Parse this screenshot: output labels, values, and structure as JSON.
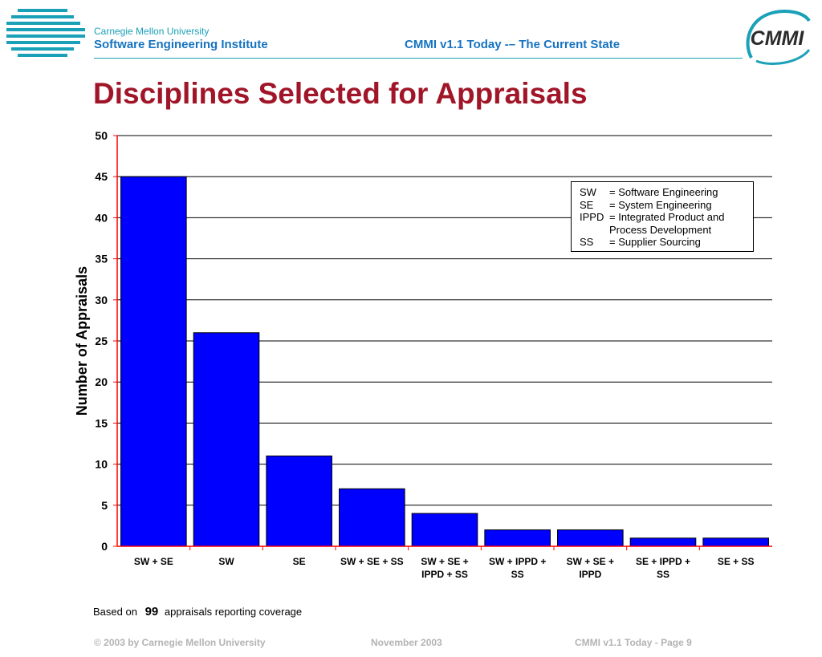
{
  "header": {
    "org_line1": "Carnegie Mellon University",
    "org_line2": "Software Engineering Institute",
    "title": "CMMI v1.1 Today -– The Current State",
    "logo_text": "CMMI"
  },
  "title": "Disciplines Selected for Appraisals",
  "legend": [
    {
      "abbr": "SW",
      "definition": "= Software Engineering"
    },
    {
      "abbr": "SE",
      "definition": "= System Engineering"
    },
    {
      "abbr": "IPPD",
      "definition": "= Integrated Product and"
    },
    {
      "abbr": "",
      "definition": "Process Development"
    },
    {
      "abbr": "SS",
      "definition": "= Supplier Sourcing"
    }
  ],
  "footnote": {
    "prefix": "Based on",
    "count": "99",
    "suffix": "appraisals reporting coverage"
  },
  "footer": {
    "copyright": "© 2003 by Carnegie Mellon University",
    "date": "November 2003",
    "page": "CMMI v1.1 Today - Page 9"
  },
  "colors": {
    "bar": "#0000ff",
    "title": "#a01628",
    "header_blue": "#1673c0",
    "teal": "#1aa1b8",
    "axis": "#ff0000"
  },
  "chart_data": {
    "type": "bar",
    "categories": [
      [
        "SW + SE"
      ],
      [
        "SW"
      ],
      [
        "SE"
      ],
      [
        "SW + SE + SS"
      ],
      [
        "SW + SE +",
        "IPPD + SS"
      ],
      [
        "SW + IPPD +",
        "SS"
      ],
      [
        "SW + SE +",
        "IPPD"
      ],
      [
        "SE + IPPD +",
        "SS"
      ],
      [
        "SE + SS"
      ]
    ],
    "values": [
      45,
      26,
      11,
      7,
      4,
      2,
      2,
      1,
      1
    ],
    "ylabel": "Number of Appraisals",
    "xlabel": "",
    "ylim": [
      0,
      50
    ],
    "yticks": [
      0,
      5,
      10,
      15,
      20,
      25,
      30,
      35,
      40,
      45,
      50
    ],
    "grid": true,
    "legend_placement": "top-right"
  }
}
